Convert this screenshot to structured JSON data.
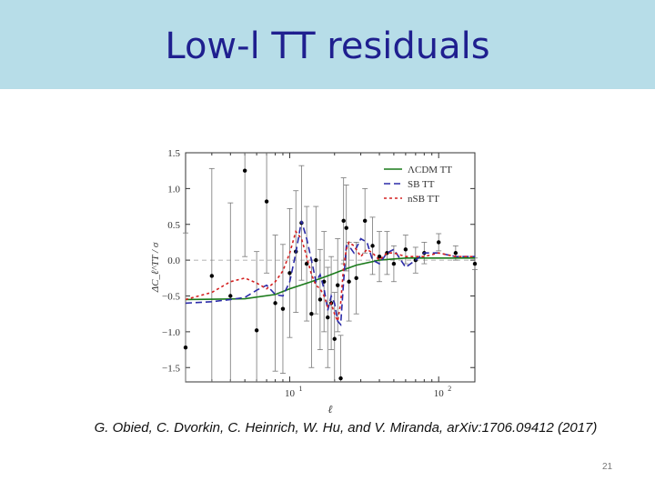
{
  "slide": {
    "title": "Low-l TT residuals",
    "citation": "G. Obied, C. Dvorkin, C. Heinrich, W. Hu, and V. Miranda, arXiv:1706.09412  (2017)",
    "page_number": "21"
  },
  "chart_data": {
    "type": "line",
    "xlabel": "ℓ",
    "ylabel": "ΔC_ℓ^TT / σ",
    "x_scale": "log",
    "xlim": [
      2,
      175
    ],
    "ylim": [
      -1.7,
      1.5
    ],
    "xtick_labels": [
      {
        "value": 10,
        "label": "10",
        "sup": "1"
      },
      {
        "value": 100,
        "label": "10",
        "sup": "2"
      }
    ],
    "ytick_labels": [
      "1.5",
      "1.0",
      "0.5",
      "0.0",
      "−0.5",
      "−1.0",
      "−1.5"
    ],
    "ytick_values": [
      1.5,
      1.0,
      0.5,
      0.0,
      -0.5,
      -1.0,
      -1.5
    ],
    "grid": false,
    "legend_position": "top-right",
    "colors": {
      "green": "#1a7a1a",
      "blue": "#2b2ba8",
      "red": "#d42020"
    },
    "series": [
      {
        "name": "ΛCDM TT",
        "style": "solid",
        "color": "#1a7a1a",
        "x": [
          2,
          5,
          8,
          10,
          14,
          18,
          22,
          28,
          40,
          60,
          100,
          175
        ],
        "y": [
          -0.55,
          -0.54,
          -0.48,
          -0.4,
          -0.3,
          -0.22,
          -0.15,
          -0.07,
          0.0,
          0.03,
          0.03,
          0.03
        ]
      },
      {
        "name": "SB TT",
        "style": "dashed",
        "color": "#2b2ba8",
        "x": [
          2,
          3,
          4,
          5,
          6,
          7,
          8,
          9,
          10,
          11,
          12,
          13,
          14,
          15,
          16,
          17,
          18,
          19,
          20,
          21,
          22,
          23,
          24,
          25,
          27,
          30,
          33,
          36,
          40,
          45,
          50,
          60,
          70,
          80,
          100,
          130,
          175
        ],
        "y": [
          -0.6,
          -0.58,
          -0.55,
          -0.52,
          -0.42,
          -0.35,
          -0.48,
          -0.5,
          -0.3,
          0.1,
          0.55,
          0.3,
          0.0,
          -0.3,
          -0.2,
          -0.4,
          -0.7,
          -0.5,
          -0.6,
          -0.85,
          -0.9,
          -0.3,
          0.2,
          0.2,
          0.1,
          0.3,
          0.25,
          0.0,
          -0.05,
          0.1,
          0.15,
          -0.1,
          0.0,
          0.1,
          0.1,
          0.05,
          0.05
        ]
      },
      {
        "name": "nSB TT",
        "style": "dotted",
        "color": "#d42020",
        "x": [
          2,
          3,
          4,
          5,
          6,
          7,
          8,
          9,
          10,
          11,
          12,
          13,
          14,
          15,
          16,
          17,
          18,
          19,
          20,
          21,
          22,
          23,
          24,
          25,
          27,
          30,
          33,
          36,
          40,
          45,
          50,
          60,
          70,
          80,
          100,
          130,
          175
        ],
        "y": [
          -0.55,
          -0.45,
          -0.3,
          -0.25,
          -0.32,
          -0.4,
          -0.3,
          -0.15,
          0.1,
          0.4,
          0.3,
          0.05,
          -0.2,
          -0.35,
          -0.4,
          -0.5,
          -0.65,
          -0.6,
          -0.75,
          -0.85,
          -0.6,
          -0.1,
          0.15,
          0.25,
          0.2,
          0.05,
          0.15,
          0.1,
          0.0,
          0.1,
          0.1,
          0.05,
          0.05,
          0.05,
          0.1,
          0.05,
          0.05
        ]
      }
    ],
    "data_points": {
      "ell": [
        2,
        3,
        4,
        5,
        6,
        7,
        8,
        9,
        10,
        11,
        12,
        13,
        14,
        15,
        16,
        17,
        18,
        19,
        20,
        21,
        22,
        23,
        24,
        25,
        28,
        32,
        36,
        40,
        45,
        50,
        60,
        70,
        80,
        100,
        130,
        175
      ],
      "value": [
        -1.22,
        -0.22,
        -0.5,
        1.25,
        -0.98,
        0.82,
        -0.6,
        -0.68,
        -0.18,
        0.12,
        0.52,
        -0.05,
        -0.75,
        0.0,
        -0.55,
        -0.3,
        -0.8,
        -0.6,
        -1.1,
        -0.35,
        -1.65,
        0.55,
        0.45,
        -0.3,
        -0.25,
        0.55,
        0.2,
        0.05,
        0.1,
        -0.05,
        0.15,
        0.0,
        0.1,
        0.25,
        0.1,
        -0.05
      ],
      "err": [
        1.6,
        1.5,
        1.3,
        1.2,
        1.1,
        1.0,
        0.95,
        0.9,
        0.9,
        0.85,
        0.8,
        0.8,
        0.75,
        0.75,
        0.7,
        0.7,
        0.7,
        0.65,
        0.65,
        0.65,
        0.6,
        0.6,
        0.6,
        0.55,
        0.5,
        0.45,
        0.4,
        0.35,
        0.3,
        0.25,
        0.2,
        0.18,
        0.15,
        0.12,
        0.1,
        0.08
      ]
    }
  }
}
